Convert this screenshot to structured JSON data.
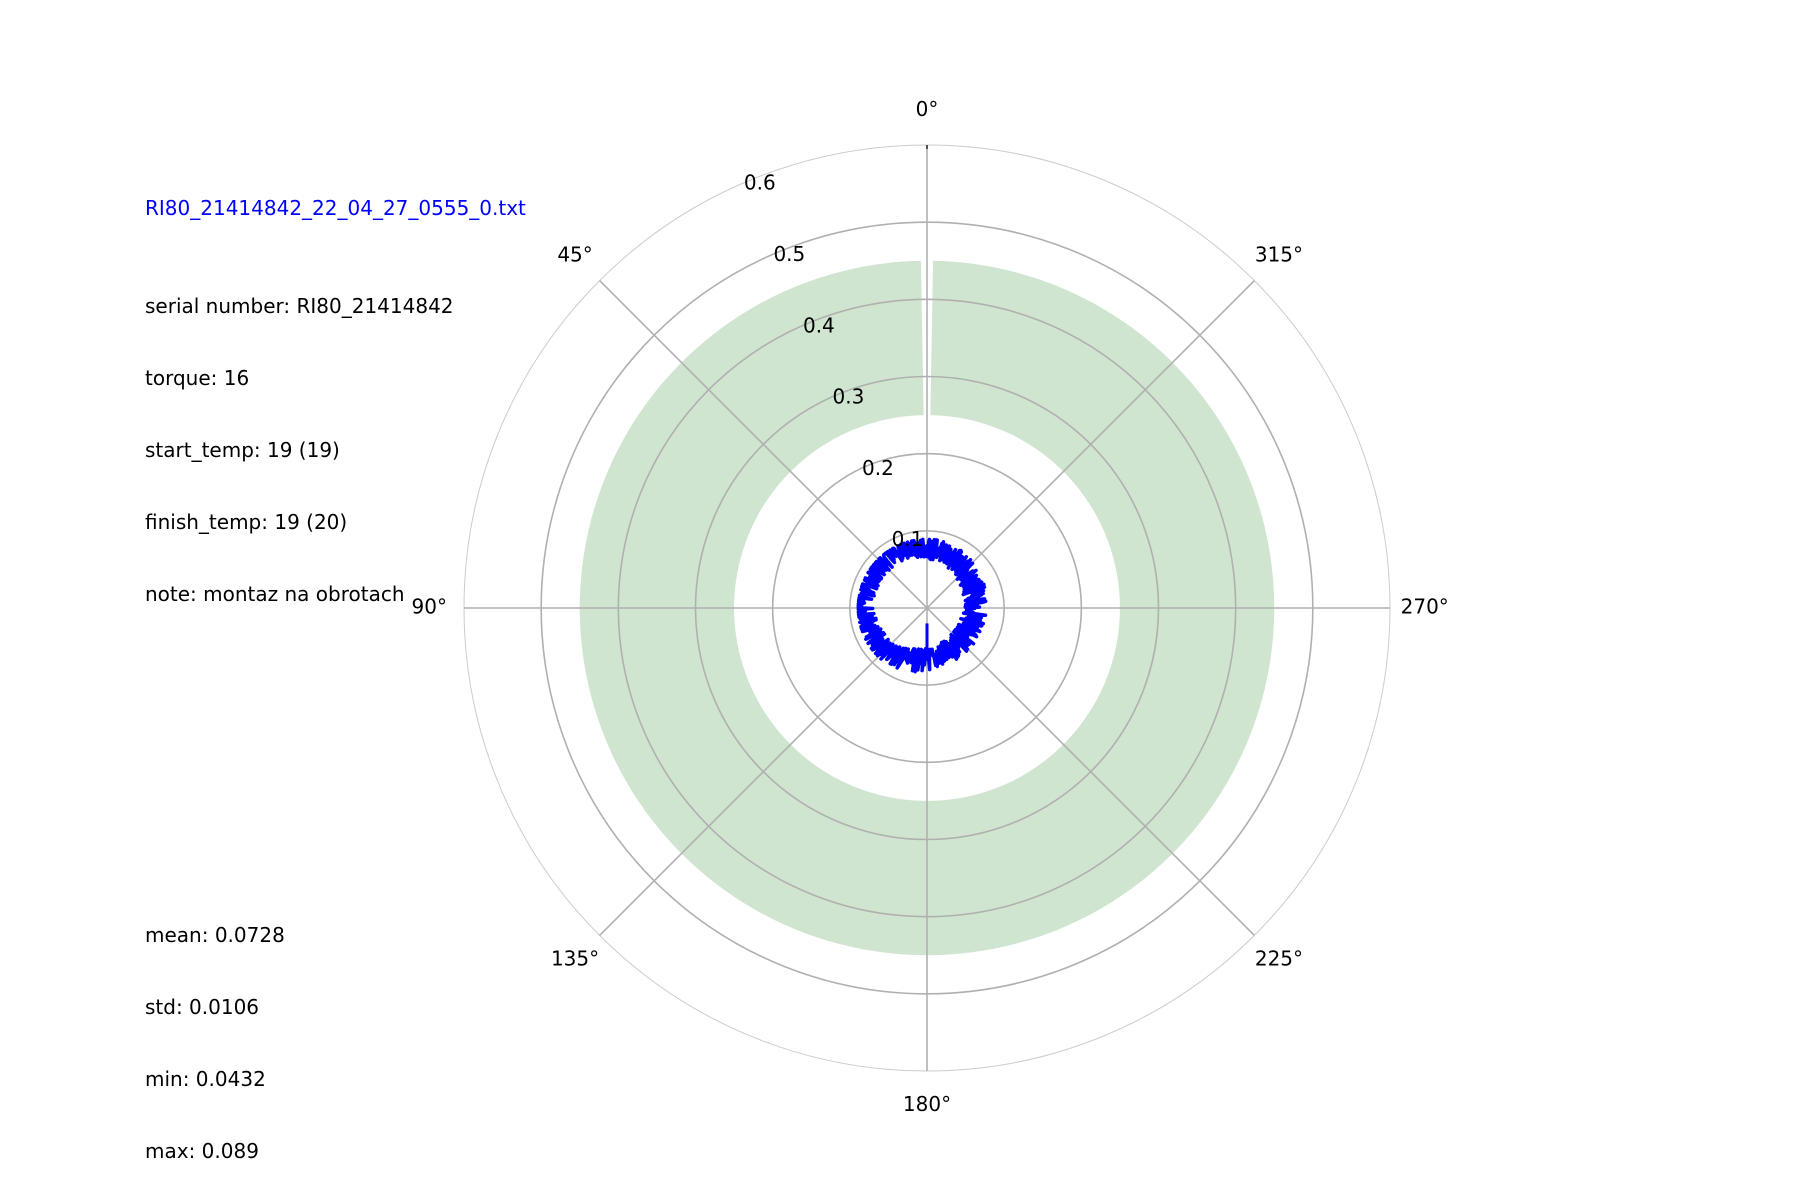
{
  "file_title": "RI80_21414842_22_04_27_0555_0.txt",
  "meta": [
    "serial number: RI80_21414842",
    "torque: 16",
    "start_temp: 19 (19)",
    "finish_temp: 19 (20)",
    "note: montaz na obrotach"
  ],
  "stats": [
    "mean: 0.0728",
    "std: 0.0106",
    "min: 0.0432",
    "max: 0.089"
  ],
  "chart_data": {
    "type": "polar-line",
    "theta_direction": "counterclockwise",
    "theta_zero": "top",
    "r_max": 0.6,
    "r_ticks": [
      0.1,
      0.2,
      0.3,
      0.4,
      0.5,
      0.6
    ],
    "r_tick_labels": [
      "0.1",
      "0.2",
      "0.3",
      "0.4",
      "0.5",
      "0.6"
    ],
    "theta_ticks_deg": [
      0,
      45,
      90,
      135,
      180,
      225,
      270,
      315
    ],
    "theta_tick_labels": [
      "0°",
      "45°",
      "90°",
      "135°",
      "180°",
      "225°",
      "270°",
      "315°"
    ],
    "tolerance_band": {
      "r_inner": 0.25,
      "r_outer": 0.45,
      "theta_start_deg": 1,
      "theta_end_deg": 359,
      "color": "#cfe5cf"
    },
    "series": [
      {
        "color": "#0000ff",
        "mean": 0.0728,
        "std": 0.0106,
        "min": 0.0432,
        "max": 0.089
      }
    ]
  }
}
